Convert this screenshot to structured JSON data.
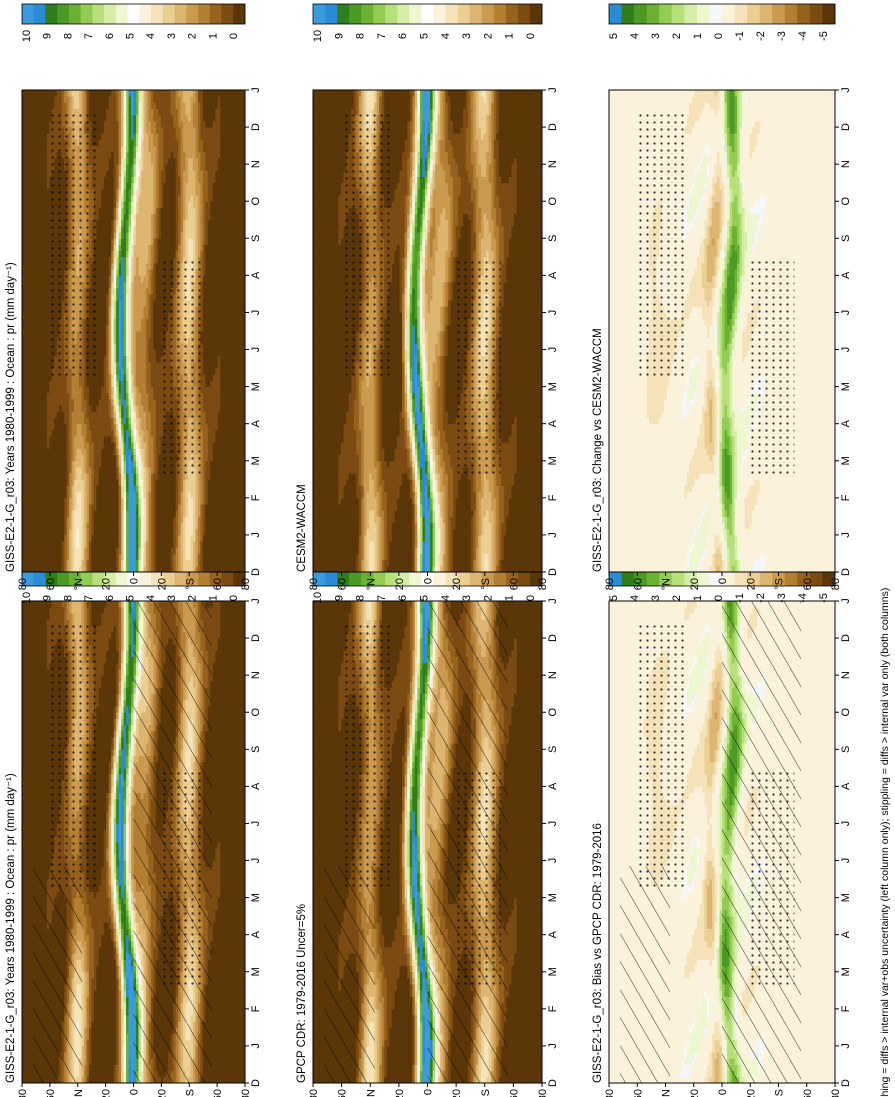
{
  "figure": {
    "footnote": "hatching = diffs > internal var+obs uncertainty (left column only); stippling = diffs > internal var only (both columns)"
  },
  "colors": {
    "prec_scale": [
      "#5a3608",
      "#7b4b12",
      "#96621d",
      "#b37f33",
      "#c99a50",
      "#dcb570",
      "#ebce92",
      "#f5e2b8",
      "#fbf2dc",
      "#ffffff",
      "#eef7d2",
      "#d5eda6",
      "#b7df7a",
      "#93cc52",
      "#6cb132",
      "#4b9a26",
      "#2f7d1b",
      "#2a8bd6",
      "#3a9bdc"
    ],
    "diff_scale": [
      "#5a3608",
      "#7b4b12",
      "#96621d",
      "#b37f33",
      "#c99a50",
      "#dcb570",
      "#ebce92",
      "#f5e2b8",
      "#fbf2dc",
      "#f5f7fb",
      "#eef7d2",
      "#d5eda6",
      "#b7df7a",
      "#93cc52",
      "#6cb132",
      "#4b9a26",
      "#2f7d1b",
      "#2a8bd6"
    ]
  },
  "chart_data": [
    {
      "type": "heatmap",
      "title": "GISS-E2-1-G_r03: Years 1980-1999 : Ocean : pr (mm day⁻¹)",
      "x": [
        "D",
        "J",
        "F",
        "M",
        "A",
        "M",
        "J",
        "J",
        "A",
        "S",
        "O",
        "N",
        "D",
        "J"
      ],
      "ytick_labels": [
        "80",
        "60",
        "°N",
        "20",
        "0",
        "20",
        "°S",
        "60",
        "80"
      ],
      "colorbar_labels": [
        "10",
        "9",
        "8",
        "7",
        "6",
        "5",
        "4",
        "3",
        "2",
        "1",
        "0"
      ],
      "scale": "prec",
      "hatching": true,
      "stippling": true
    },
    {
      "type": "heatmap",
      "title": "GISS-E2-1-G_r03: Years 1980-1999 : Ocean : pr (mm day⁻¹)",
      "x": [
        "D",
        "J",
        "F",
        "M",
        "A",
        "M",
        "J",
        "J",
        "A",
        "S",
        "O",
        "N",
        "D",
        "J"
      ],
      "ytick_labels": [
        "80",
        "60",
        "°N",
        "20",
        "0",
        "20",
        "°S",
        "60",
        "80"
      ],
      "colorbar_labels": [
        "10",
        "9",
        "8",
        "7",
        "6",
        "5",
        "4",
        "3",
        "2",
        "1",
        "0"
      ],
      "scale": "prec",
      "hatching": false,
      "stippling": true
    },
    {
      "type": "heatmap",
      "title": "GPCP CDR: 1979-2016 Uncer=5%",
      "x": [
        "D",
        "J",
        "F",
        "M",
        "A",
        "M",
        "J",
        "J",
        "A",
        "S",
        "O",
        "N",
        "D",
        "J"
      ],
      "ytick_labels": [
        "80",
        "60",
        "°N",
        "20",
        "0",
        "20",
        "°S",
        "60",
        "80"
      ],
      "colorbar_labels": [
        "10",
        "9",
        "8",
        "7",
        "6",
        "5",
        "4",
        "3",
        "2",
        "1",
        "0"
      ],
      "scale": "prec",
      "hatching": true,
      "stippling": true
    },
    {
      "type": "heatmap",
      "title": "CESM2-WACCM",
      "x": [
        "D",
        "J",
        "F",
        "M",
        "A",
        "M",
        "J",
        "J",
        "A",
        "S",
        "O",
        "N",
        "D",
        "J"
      ],
      "ytick_labels": [
        "80",
        "60",
        "°N",
        "20",
        "0",
        "20",
        "°S",
        "60",
        "80"
      ],
      "colorbar_labels": [
        "10",
        "9",
        "8",
        "7",
        "6",
        "5",
        "4",
        "3",
        "2",
        "1",
        "0"
      ],
      "scale": "prec",
      "hatching": false,
      "stippling": true
    },
    {
      "type": "heatmap",
      "title": "GISS-E2-1-G_r03: Bias vs GPCP CDR: 1979-2016",
      "x": [
        "D",
        "J",
        "F",
        "M",
        "A",
        "M",
        "J",
        "J",
        "A",
        "S",
        "O",
        "N",
        "D",
        "J"
      ],
      "ytick_labels": [
        "80",
        "60",
        "°N",
        "20",
        "0",
        "20",
        "°S",
        "60",
        "80"
      ],
      "colorbar_labels": [
        "5",
        "4",
        "3",
        "2",
        "1",
        "0",
        "-1",
        "-2",
        "-3",
        "-4",
        "-5"
      ],
      "scale": "diff",
      "hatching": true,
      "stippling": true
    },
    {
      "type": "heatmap",
      "title": "GISS-E2-1-G_r03: Change vs CESM2-WACCM",
      "x": [
        "D",
        "J",
        "F",
        "M",
        "A",
        "M",
        "J",
        "J",
        "A",
        "S",
        "O",
        "N",
        "D",
        "J"
      ],
      "ytick_labels": [
        "80",
        "60",
        "°N",
        "20",
        "0",
        "20",
        "°S",
        "60",
        "80"
      ],
      "colorbar_labels": [
        "5",
        "4",
        "3",
        "2",
        "1",
        "0",
        "-1",
        "-2",
        "-3",
        "-4",
        "-5"
      ],
      "scale": "diff",
      "hatching": false,
      "stippling": true
    }
  ]
}
